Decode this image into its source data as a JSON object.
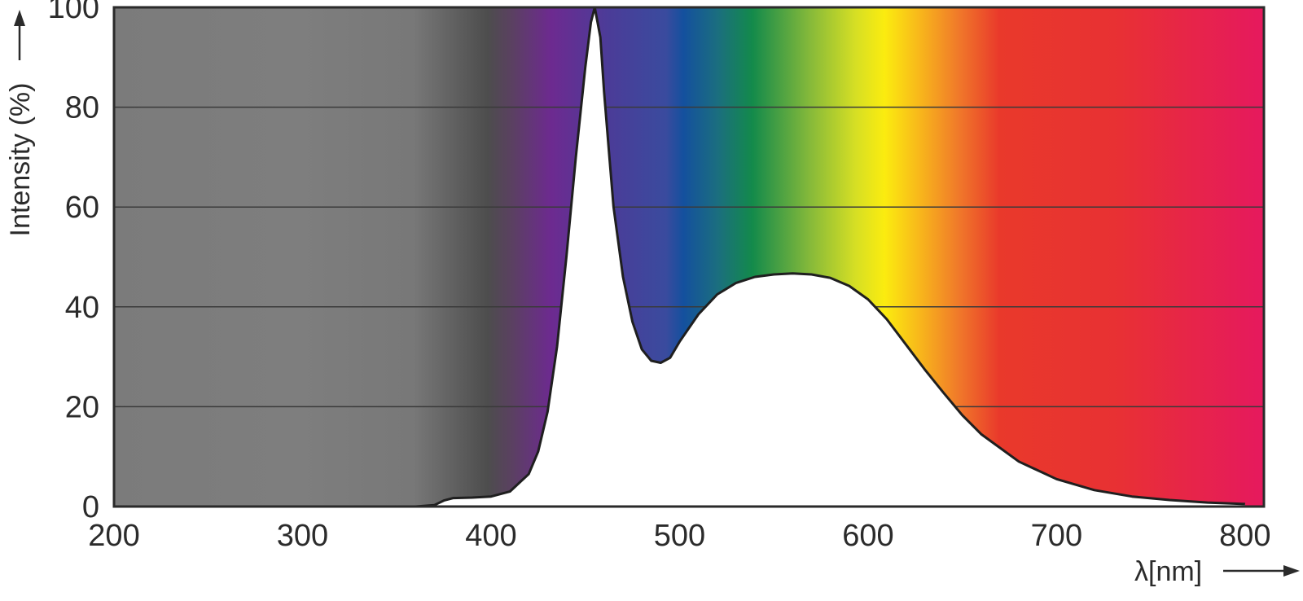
{
  "chart_data": {
    "type": "area",
    "title": "",
    "xlabel": "λ[nm]",
    "ylabel": "Intensity (%)",
    "xlim": [
      200,
      810
    ],
    "ylim": [
      0,
      100
    ],
    "x_ticks": [
      200,
      300,
      400,
      500,
      600,
      700,
      800
    ],
    "y_ticks": [
      0,
      20,
      40,
      60,
      80,
      100
    ],
    "grid": "horizontal",
    "background": "visible-spectrum color gradient (grey ultraviolet region, violet to red visible region)",
    "curve_fill": "#ffffff",
    "series": [
      {
        "x": [
          200,
          360,
          370,
          375,
          380,
          390,
          400,
          410,
          420,
          425,
          430,
          435,
          440,
          445,
          450,
          453,
          455,
          458,
          460,
          463,
          465,
          470,
          475,
          480,
          485,
          490,
          495,
          500,
          510,
          520,
          530,
          540,
          550,
          560,
          570,
          580,
          590,
          600,
          610,
          620,
          630,
          640,
          650,
          660,
          680,
          700,
          720,
          740,
          760,
          780,
          800
        ],
        "y": [
          0,
          0,
          0.3,
          1.2,
          1.7,
          1.8,
          2.0,
          3.0,
          6.5,
          11,
          19,
          32,
          50,
          70,
          88,
          97,
          100,
          94,
          83,
          69,
          60,
          46,
          37,
          31.5,
          29.2,
          28.8,
          29.8,
          33,
          38.5,
          42.5,
          44.8,
          46.0,
          46.5,
          46.7,
          46.5,
          45.8,
          44.2,
          41.5,
          37.5,
          32.5,
          27.5,
          22.8,
          18.3,
          14.5,
          9.0,
          5.5,
          3.3,
          2.0,
          1.3,
          0.8,
          0.5
        ]
      }
    ]
  }
}
